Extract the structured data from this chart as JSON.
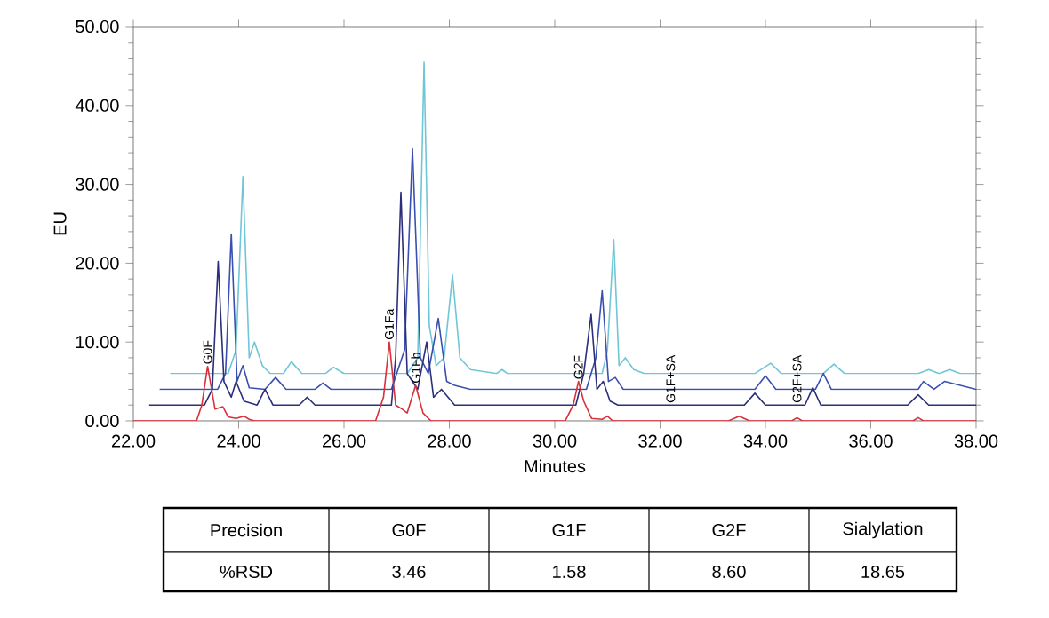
{
  "chart_data": {
    "type": "line",
    "xlabel": "Minutes",
    "ylabel": "EU",
    "marker": "none",
    "line_style": "solid",
    "xlim": [
      22,
      38
    ],
    "ylim": [
      0,
      50
    ],
    "xticks": [
      {
        "value": 22,
        "label": "22.00"
      },
      {
        "value": 24,
        "label": "24.00"
      },
      {
        "value": 26,
        "label": "26.00"
      },
      {
        "value": 28,
        "label": "28.00"
      },
      {
        "value": 30,
        "label": "30.00"
      },
      {
        "value": 32,
        "label": "32.00"
      },
      {
        "value": 34,
        "label": "34.00"
      },
      {
        "value": 36,
        "label": "36.00"
      },
      {
        "value": 38,
        "label": "38.00"
      }
    ],
    "yticks": [
      {
        "value": 0,
        "label": "0.00"
      },
      {
        "value": 10,
        "label": "10.00"
      },
      {
        "value": 20,
        "label": "20.00"
      },
      {
        "value": 30,
        "label": "30.00"
      },
      {
        "value": 40,
        "label": "40.00"
      },
      {
        "value": 50,
        "label": "50.00"
      }
    ],
    "series": [
      {
        "color": "#6fc6d6",
        "x": [
          22.7,
          23.8,
          23.95,
          24.08,
          24.2,
          24.3,
          24.45,
          24.6,
          24.85,
          25.0,
          25.2,
          25.65,
          25.8,
          26.0,
          26.9,
          27.2,
          27.4,
          27.52,
          27.62,
          27.75,
          27.9,
          28.06,
          28.2,
          28.4,
          28.9,
          29.0,
          29.1,
          30.9,
          31.0,
          31.12,
          31.22,
          31.34,
          31.5,
          31.7,
          33.8,
          34.1,
          34.3,
          35.1,
          35.3,
          35.5,
          36.9,
          37.1,
          37.3,
          37.5,
          37.7,
          38.0
        ],
        "values": [
          6,
          6,
          9,
          31,
          8,
          10,
          7,
          6,
          6,
          7.5,
          6,
          6,
          6.8,
          6,
          6,
          6,
          8,
          45.5,
          12,
          7,
          8,
          18.5,
          8,
          6.5,
          6,
          6.5,
          6,
          6,
          9,
          23,
          7,
          8,
          6.5,
          6,
          6,
          7.3,
          6,
          6,
          7.2,
          6,
          6,
          6.5,
          6,
          6.5,
          6,
          6
        ]
      },
      {
        "color": "#3a4fb0",
        "x": [
          22.5,
          23.6,
          23.75,
          23.86,
          23.97,
          24.08,
          24.2,
          24.5,
          24.7,
          24.9,
          25.45,
          25.6,
          25.75,
          26.9,
          27.15,
          27.3,
          27.45,
          27.6,
          27.79,
          27.95,
          28.1,
          28.4,
          30.6,
          30.78,
          30.9,
          31.02,
          31.15,
          31.3,
          33.8,
          34.0,
          34.2,
          34.95,
          35.1,
          35.25,
          36.9,
          37.0,
          37.2,
          37.4,
          38.0
        ],
        "values": [
          4,
          4,
          6,
          23.7,
          5,
          7,
          4.2,
          4,
          5.5,
          4,
          4,
          4.8,
          4,
          4,
          9,
          34.5,
          8,
          6,
          13,
          5,
          4.5,
          4,
          4,
          8,
          16.5,
          5,
          5.5,
          4,
          4,
          5.7,
          4,
          4,
          6,
          4,
          4,
          5,
          4,
          5,
          4
        ]
      },
      {
        "color": "#2b2f7a",
        "x": [
          22.3,
          23.35,
          23.5,
          23.61,
          23.72,
          23.86,
          23.95,
          24.1,
          24.35,
          24.5,
          24.65,
          25.15,
          25.3,
          25.45,
          26.9,
          26.98,
          27.08,
          27.2,
          27.4,
          27.57,
          27.7,
          27.85,
          28.1,
          29.0,
          30.4,
          30.55,
          30.69,
          30.8,
          30.92,
          31.05,
          31.2,
          33.6,
          33.8,
          34.0,
          34.75,
          34.9,
          35.05,
          36.7,
          36.9,
          37.1,
          38.0
        ],
        "values": [
          2,
          2,
          4,
          20.2,
          5,
          3,
          5,
          2.5,
          2,
          4,
          2,
          2,
          3,
          2,
          2,
          8,
          29,
          6,
          4,
          10,
          3,
          4,
          2,
          2,
          2,
          6,
          13.5,
          4,
          5,
          2.5,
          2,
          2,
          3.5,
          2,
          2,
          4.2,
          2,
          2,
          3.3,
          2,
          2
        ]
      },
      {
        "color": "#d9303a",
        "x": [
          22.0,
          23.2,
          23.3,
          23.41,
          23.55,
          23.7,
          23.8,
          23.95,
          24.1,
          24.2,
          24.3,
          26.6,
          26.75,
          26.86,
          26.98,
          27.1,
          27.2,
          27.36,
          27.5,
          27.65,
          30.2,
          30.35,
          30.45,
          30.55,
          30.7,
          30.9,
          31.0,
          31.1,
          33.3,
          33.5,
          33.7,
          34.5,
          34.6,
          34.7,
          36.8,
          36.9,
          37.0,
          38.0
        ],
        "values": [
          0,
          0,
          2,
          6.9,
          1.5,
          1.8,
          0.5,
          0.3,
          0.6,
          0.2,
          0,
          0,
          3,
          10,
          2,
          1.5,
          1,
          4.5,
          1,
          0,
          0,
          2,
          5,
          2.5,
          0.3,
          0.2,
          0.6,
          0,
          0,
          0.6,
          0,
          0,
          0.4,
          0,
          0,
          0.4,
          0,
          0
        ]
      }
    ],
    "annotations": [
      {
        "text": "G0F",
        "x": 23.41,
        "y": 6.9
      },
      {
        "text": "G1Fa",
        "x": 26.86,
        "y": 10
      },
      {
        "text": "G1Fb",
        "x": 27.36,
        "y": 4.5
      },
      {
        "text": "G2F",
        "x": 30.45,
        "y": 5
      },
      {
        "text": "G1F+SA",
        "x": 32.2,
        "y": 2
      },
      {
        "text": "G2F+SA",
        "x": 34.6,
        "y": 2
      },
      "Precision",
      "G0F",
      "G1F",
      "G2F",
      "Sialylation",
      "%RSD",
      "3.46",
      "1.58",
      "8.60",
      "18.65"
    ]
  }
}
